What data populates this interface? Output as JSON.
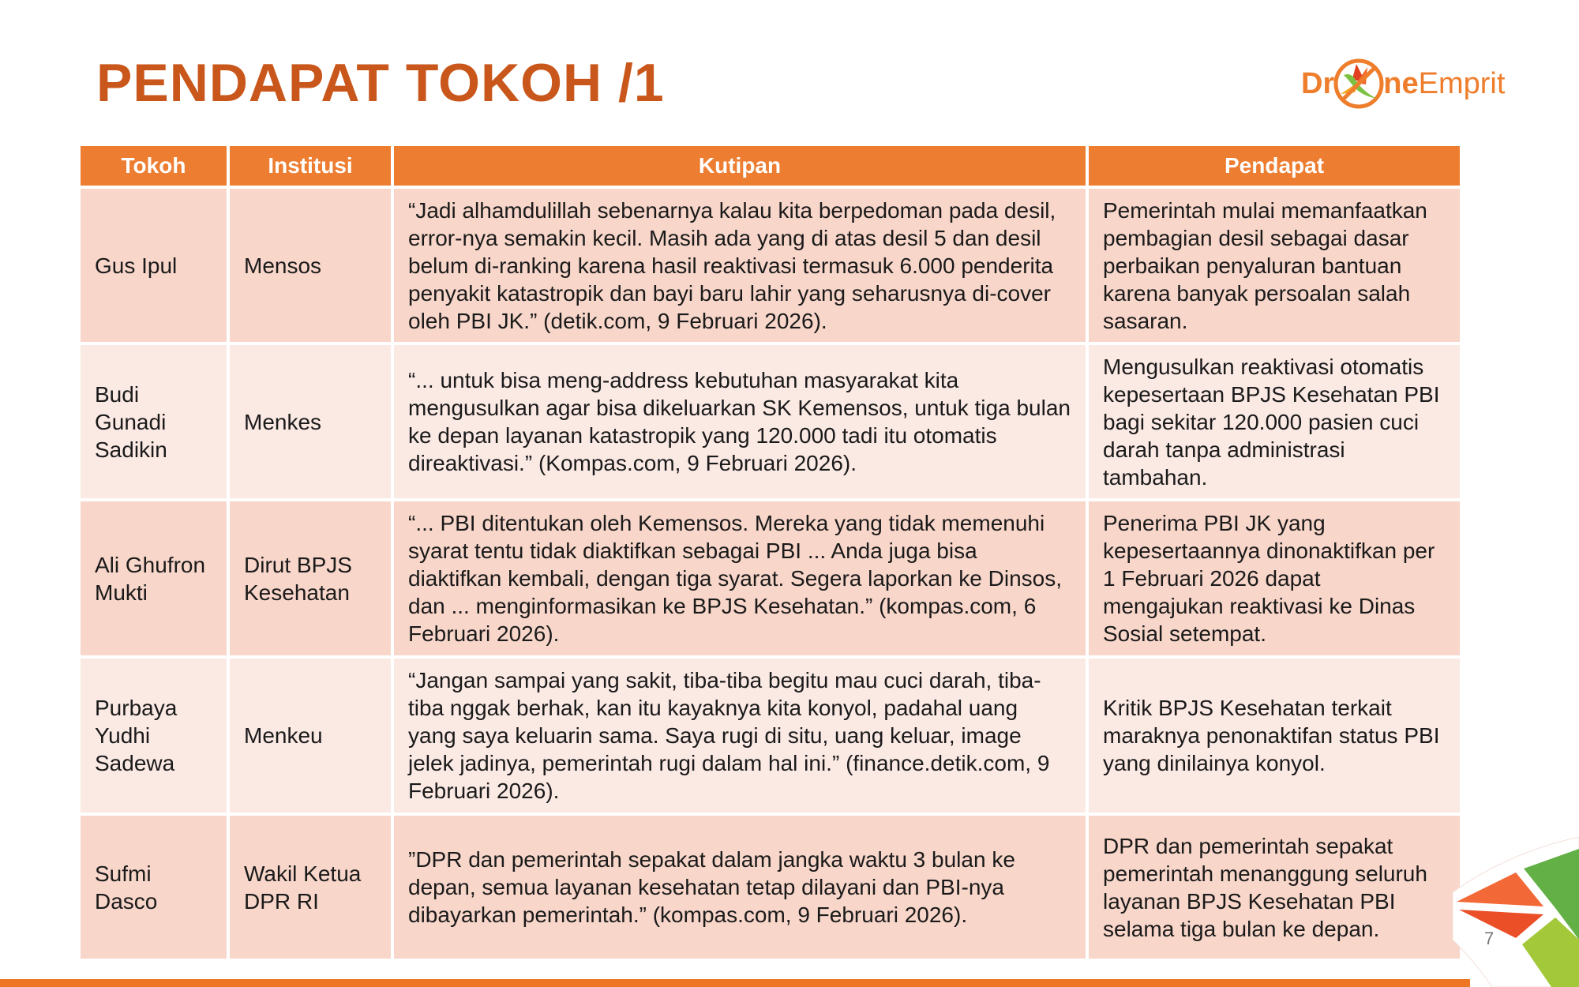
{
  "title": "PENDAPAT TOKOH /1",
  "logo": {
    "text_part1": "Dr",
    "text_part2": "ne",
    "text_part3": "Emprit"
  },
  "colors": {
    "accent": "#ed7d31",
    "title": "#c9571b",
    "row_dark": "#f8d6ca",
    "row_light": "#fbe9e4"
  },
  "table": {
    "headers": [
      "Tokoh",
      "Institusi",
      "Kutipan",
      "Pendapat"
    ],
    "rows": [
      {
        "tokoh": "Gus Ipul",
        "institusi": "Mensos",
        "kutipan": "“Jadi alhamdulillah sebenarnya kalau kita berpedoman pada desil, error-nya semakin kecil. Masih ada yang di atas desil 5 dan desil belum di-ranking karena hasil reaktivasi termasuk 6.000 penderita penyakit katastropik dan bayi baru lahir yang seharusnya di-cover oleh PBI JK.” (detik.com, 9 Februari 2026).",
        "pendapat": "Pemerintah mulai memanfaatkan pembagian desil sebagai dasar perbaikan penyaluran bantuan karena banyak persoalan salah sasaran."
      },
      {
        "tokoh": "Budi Gunadi Sadikin",
        "institusi": "Menkes",
        "kutipan": "“...  untuk bisa meng-address kebutuhan masyarakat kita mengusulkan agar bisa dikeluarkan SK Kemensos, untuk tiga bulan ke depan layanan katastropik yang 120.000 tadi itu otomatis direaktivasi.” (Kompas.com, 9 Februari 2026).",
        "pendapat": "Mengusulkan reaktivasi otomatis kepesertaan BPJS Kesehatan PBI bagi sekitar 120.000 pasien cuci darah tanpa administrasi tambahan."
      },
      {
        "tokoh": "Ali Ghufron Mukti",
        "institusi": "Dirut BPJS Kesehatan",
        "kutipan": "“... PBI ditentukan oleh Kemensos. Mereka yang tidak memenuhi syarat tentu tidak diaktifkan sebagai PBI ... Anda juga bisa diaktifkan kembali, dengan tiga syarat. Segera laporkan ke Dinsos, dan ... menginformasikan ke BPJS Kesehatan.” (kompas.com, 6 Februari 2026).",
        "pendapat": "Penerima PBI JK yang kepesertaannya dinonaktifkan per 1 Februari 2026 dapat mengajukan reaktivasi ke Dinas Sosial setempat."
      },
      {
        "tokoh": "Purbaya Yudhi Sadewa",
        "institusi": "Menkeu",
        "kutipan": "“Jangan sampai yang sakit, tiba-tiba begitu mau cuci darah, tiba-tiba nggak berhak, kan itu kayaknya kita konyol, padahal uang yang saya keluarin sama. Saya rugi di situ, uang keluar, image jelek jadinya, pemerintah rugi dalam hal ini.” (finance.detik.com, 9 Februari 2026).",
        "pendapat": "Kritik BPJS Kesehatan terkait maraknya penonaktifan status PBI yang dinilainya konyol."
      },
      {
        "tokoh": "Sufmi Dasco",
        "institusi": "Wakil Ketua DPR RI",
        "kutipan": "”DPR dan pemerintah sepakat dalam jangka waktu 3 bulan ke depan, semua layanan kesehatan tetap dilayani dan PBI-nya dibayarkan pemerintah.” (kompas.com, 9 Februari 2026).",
        "pendapat": "DPR dan pemerintah sepakat pemerintah menanggung seluruh layanan BPJS Kesehatan PBI selama tiga bulan ke depan."
      }
    ]
  },
  "page_number": "7"
}
